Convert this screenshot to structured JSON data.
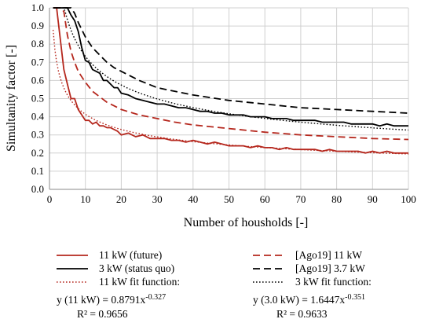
{
  "chart_data": {
    "type": "line",
    "xlabel": "Number of housholds [-]",
    "ylabel": "Simultanity factor [-]",
    "xlim": [
      0,
      100
    ],
    "ylim": [
      0,
      1.0
    ],
    "x_ticks": [
      "0",
      "10",
      "20",
      "30",
      "40",
      "50",
      "60",
      "70",
      "80",
      "90",
      "100"
    ],
    "y_ticks": [
      "0.0",
      "0.1",
      "0.2",
      "0.3",
      "0.4",
      "0.5",
      "0.6",
      "0.7",
      "0.8",
      "0.9",
      "1.0"
    ],
    "grid": true,
    "legend_position": "bottom",
    "series": [
      {
        "name": "11 kW (future)",
        "style": "solid",
        "color": "#b5271d",
        "x": [
          1,
          2,
          3,
          4,
          5,
          6,
          7,
          8,
          9,
          10,
          11,
          12,
          13,
          14,
          15,
          16,
          17,
          18,
          19,
          20,
          22,
          24,
          26,
          28,
          30,
          32,
          34,
          36,
          38,
          40,
          42,
          44,
          46,
          48,
          50,
          52,
          54,
          56,
          58,
          60,
          62,
          64,
          66,
          68,
          70,
          72,
          74,
          76,
          78,
          80,
          82,
          84,
          86,
          88,
          90,
          92,
          94,
          96,
          98,
          100
        ],
        "y": [
          1.0,
          1.0,
          0.83,
          0.66,
          0.58,
          0.5,
          0.5,
          0.44,
          0.41,
          0.38,
          0.38,
          0.36,
          0.37,
          0.35,
          0.35,
          0.34,
          0.34,
          0.33,
          0.32,
          0.3,
          0.31,
          0.29,
          0.3,
          0.28,
          0.28,
          0.28,
          0.27,
          0.27,
          0.26,
          0.27,
          0.26,
          0.25,
          0.26,
          0.25,
          0.24,
          0.24,
          0.24,
          0.23,
          0.24,
          0.23,
          0.23,
          0.22,
          0.23,
          0.22,
          0.22,
          0.22,
          0.22,
          0.21,
          0.22,
          0.21,
          0.21,
          0.21,
          0.21,
          0.2,
          0.21,
          0.2,
          0.21,
          0.2,
          0.2,
          0.2
        ]
      },
      {
        "name": "3 kW (status quo)",
        "style": "solid",
        "color": "#000000",
        "x": [
          1,
          2,
          3,
          4,
          5,
          6,
          7,
          8,
          9,
          10,
          11,
          12,
          13,
          14,
          15,
          16,
          17,
          18,
          19,
          20,
          22,
          24,
          26,
          28,
          30,
          32,
          34,
          36,
          38,
          40,
          42,
          44,
          46,
          48,
          50,
          52,
          54,
          56,
          58,
          60,
          62,
          64,
          66,
          68,
          70,
          72,
          74,
          76,
          78,
          80,
          82,
          84,
          86,
          88,
          90,
          92,
          94,
          96,
          98,
          100
        ],
        "y": [
          1.0,
          1.0,
          1.0,
          1.0,
          1.0,
          0.96,
          0.93,
          0.87,
          0.78,
          0.71,
          0.7,
          0.66,
          0.65,
          0.64,
          0.6,
          0.6,
          0.58,
          0.56,
          0.56,
          0.53,
          0.52,
          0.5,
          0.49,
          0.48,
          0.47,
          0.47,
          0.46,
          0.45,
          0.45,
          0.44,
          0.43,
          0.43,
          0.42,
          0.42,
          0.41,
          0.41,
          0.41,
          0.4,
          0.4,
          0.4,
          0.39,
          0.39,
          0.39,
          0.38,
          0.38,
          0.38,
          0.38,
          0.37,
          0.37,
          0.37,
          0.37,
          0.36,
          0.36,
          0.36,
          0.36,
          0.35,
          0.36,
          0.35,
          0.35,
          0.35
        ]
      },
      {
        "name": "11 kW fit function:",
        "style": "dotted",
        "color": "#b5271d",
        "fit": {
          "a": 0.8791,
          "b": -0.327
        }
      },
      {
        "name": "[Ago19] 11 kW",
        "style": "dashed",
        "color": "#b5271d",
        "x": [
          1,
          2,
          3,
          4,
          5,
          6,
          7,
          8,
          9,
          10,
          12,
          14,
          16,
          18,
          20,
          25,
          30,
          35,
          40,
          50,
          60,
          70,
          80,
          90,
          100
        ],
        "y": [
          1.0,
          1.0,
          1.0,
          0.98,
          0.85,
          0.76,
          0.7,
          0.65,
          0.62,
          0.59,
          0.54,
          0.51,
          0.48,
          0.46,
          0.44,
          0.41,
          0.39,
          0.37,
          0.355,
          0.335,
          0.315,
          0.3,
          0.29,
          0.28,
          0.275
        ]
      },
      {
        "name": "[Ago19] 3.7 kW",
        "style": "dashed",
        "color": "#000000",
        "x": [
          1,
          2,
          3,
          4,
          5,
          6,
          7,
          8,
          9,
          10,
          12,
          14,
          16,
          18,
          20,
          25,
          30,
          35,
          40,
          50,
          60,
          70,
          80,
          90,
          100
        ],
        "y": [
          1.0,
          1.0,
          1.0,
          1.0,
          1.0,
          1.0,
          0.97,
          0.92,
          0.88,
          0.84,
          0.78,
          0.74,
          0.7,
          0.67,
          0.65,
          0.6,
          0.56,
          0.54,
          0.52,
          0.49,
          0.47,
          0.45,
          0.44,
          0.43,
          0.42
        ]
      },
      {
        "name": "3 kW fit function:",
        "style": "dotted",
        "color": "#000000",
        "fit": {
          "a": 1.6447,
          "b": -0.351
        }
      }
    ],
    "equations": {
      "left_eq_prefix": "y (11 kW) = 0.8791x",
      "left_eq_exp": "-0.327",
      "left_r2": "R² = 0.9656",
      "right_eq_prefix": "y (3.0 kW) = 1.6447x",
      "right_eq_exp": "-0.351",
      "right_r2": "R² = 0.9633"
    }
  }
}
